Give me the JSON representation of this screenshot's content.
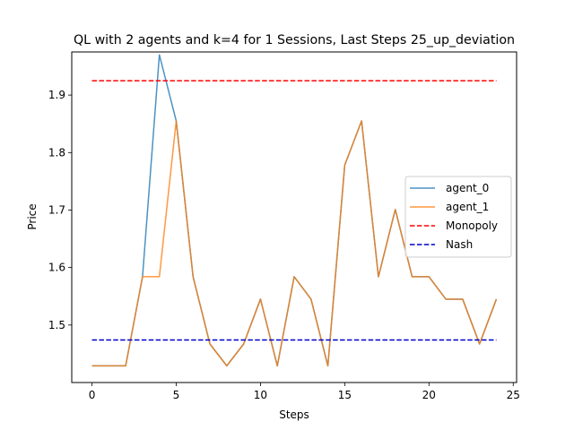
{
  "chart_data": {
    "type": "line",
    "title": "QL with 2 agents and k=4 for 1 Sessions, Last Steps 25_up_deviation",
    "xlabel": "Steps",
    "ylabel": "Price",
    "xlim": [
      -1.2,
      25.2
    ],
    "ylim": [
      1.4,
      1.975
    ],
    "xticks": [
      0,
      5,
      10,
      15,
      20,
      25
    ],
    "xtick_labels": [
      "0",
      "5",
      "10",
      "15",
      "20",
      "25"
    ],
    "yticks": [
      1.5,
      1.6,
      1.7,
      1.8,
      1.9
    ],
    "ytick_labels": [
      "1.5",
      "1.6",
      "1.7",
      "1.8",
      "1.9"
    ],
    "grid": false,
    "legend_position": "center-right",
    "x": [
      0,
      1,
      2,
      3,
      4,
      5,
      6,
      7,
      8,
      9,
      10,
      11,
      12,
      13,
      14,
      15,
      16,
      17,
      18,
      19,
      20,
      21,
      22,
      23,
      24
    ],
    "series": [
      {
        "name": "agent_0",
        "color": "#1f77b4",
        "style": "solid",
        "values": [
          1.429,
          1.429,
          1.429,
          1.584,
          1.97,
          1.855,
          1.584,
          1.467,
          1.429,
          1.467,
          1.545,
          1.429,
          1.584,
          1.545,
          1.429,
          1.778,
          1.855,
          1.584,
          1.701,
          1.584,
          1.584,
          1.545,
          1.545,
          1.467,
          1.545
        ]
      },
      {
        "name": "agent_1",
        "color": "#ff7f0e",
        "style": "solid",
        "values": [
          1.429,
          1.429,
          1.429,
          1.584,
          1.584,
          1.855,
          1.584,
          1.467,
          1.429,
          1.467,
          1.545,
          1.429,
          1.584,
          1.545,
          1.429,
          1.778,
          1.855,
          1.584,
          1.701,
          1.584,
          1.584,
          1.545,
          1.545,
          1.467,
          1.545
        ]
      },
      {
        "name": "Monopoly",
        "color": "#ff0000",
        "style": "dashed",
        "values": [
          1.925,
          1.925,
          1.925,
          1.925,
          1.925,
          1.925,
          1.925,
          1.925,
          1.925,
          1.925,
          1.925,
          1.925,
          1.925,
          1.925,
          1.925,
          1.925,
          1.925,
          1.925,
          1.925,
          1.925,
          1.925,
          1.925,
          1.925,
          1.925,
          1.925
        ]
      },
      {
        "name": "Nash",
        "color": "#0000cc",
        "style": "dashed",
        "values": [
          1.474,
          1.474,
          1.474,
          1.474,
          1.474,
          1.474,
          1.474,
          1.474,
          1.474,
          1.474,
          1.474,
          1.474,
          1.474,
          1.474,
          1.474,
          1.474,
          1.474,
          1.474,
          1.474,
          1.474,
          1.474,
          1.474,
          1.474,
          1.474,
          1.474
        ]
      }
    ]
  }
}
